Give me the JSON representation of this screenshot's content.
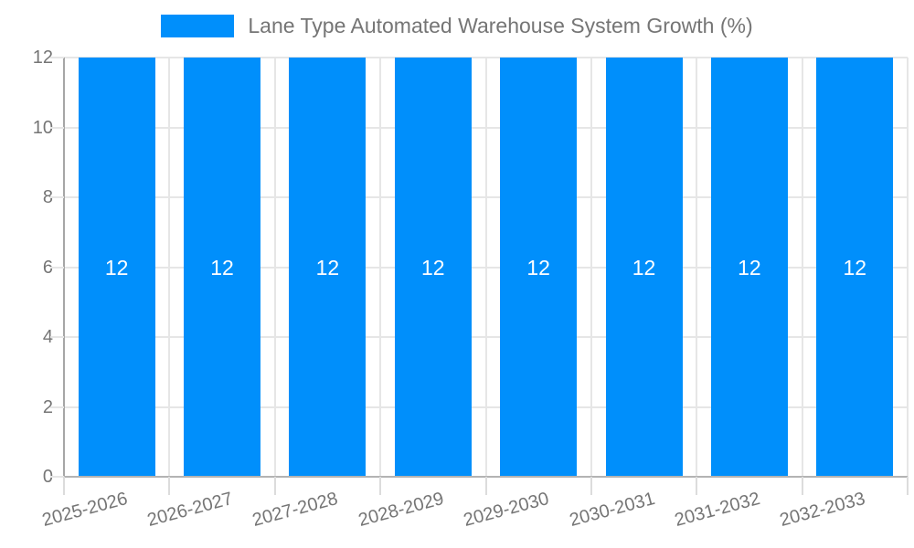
{
  "chart_data": {
    "type": "bar",
    "title": "Lane Type Automated Warehouse System Growth (%)",
    "categories": [
      "2025-2026",
      "2026-2027",
      "2027-2028",
      "2028-2029",
      "2029-2030",
      "2030-2031",
      "2031-2032",
      "2032-2033"
    ],
    "series": [
      {
        "name": "Lane Type Automated Warehouse System Growth (%)",
        "values": [
          12,
          12,
          12,
          12,
          12,
          12,
          12,
          12
        ]
      }
    ],
    "values": [
      12,
      12,
      12,
      12,
      12,
      12,
      12,
      12
    ],
    "bar_value_labels": [
      "12",
      "12",
      "12",
      "12",
      "12",
      "12",
      "12",
      "12"
    ],
    "xlabel": "",
    "ylabel": "",
    "ylim": [
      0,
      12
    ],
    "yticks": [
      0,
      2,
      4,
      6,
      8,
      10,
      12
    ],
    "grid": true,
    "legend_position": "top",
    "colors": {
      "bar": "#008FFB",
      "bar_label": "#ffffff",
      "axis_text": "#757575",
      "grid_line": "#e6e6e6",
      "axis_line": "#b0b0b0",
      "background": "#ffffff"
    }
  }
}
